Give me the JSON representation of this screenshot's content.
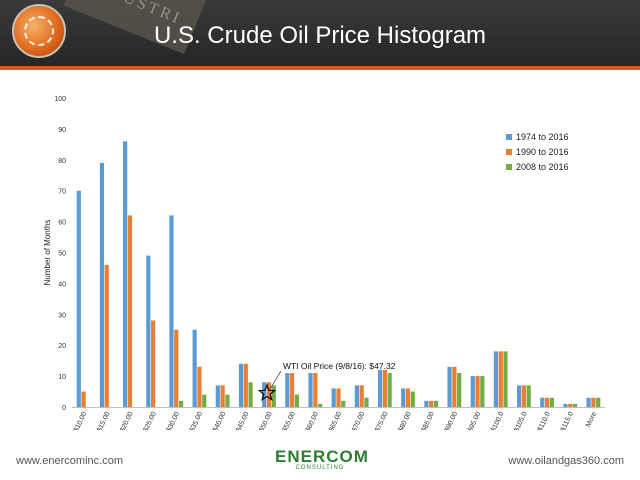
{
  "header": {
    "title": "U.S. Crude Oil Price Histogram",
    "watermark_text": "INDUSTRI"
  },
  "footer": {
    "left_url": "www.enercominc.com",
    "right_url": "www.oilandgas360.com",
    "brand": "ENERCOM",
    "brand_sub": "CONSULTING"
  },
  "colors": {
    "series_1": "#5b9bd5",
    "series_2": "#ed7d31",
    "series_3": "#70ad47",
    "header_accent": "#d9531e"
  },
  "chart_data": {
    "type": "bar",
    "title": "",
    "xlabel": "",
    "ylabel": "Number of Months",
    "ylim": [
      0,
      100
    ],
    "yticks": [
      0,
      10,
      20,
      30,
      40,
      50,
      60,
      70,
      80,
      90,
      100
    ],
    "grid": false,
    "legend_position": "right",
    "categories": [
      "$10.00",
      "$15.00",
      "$20.00",
      "$25.00",
      "$30.00",
      "$35.00",
      "$40.00",
      "$45.00",
      "$50.00",
      "$55.00",
      "$60.00",
      "$65.00",
      "$70.00",
      "$75.00",
      "$80.00",
      "$85.00",
      "$90.00",
      "$95.00",
      "$100.0",
      "$105.0",
      "$110.0",
      "$115.0",
      "More"
    ],
    "series": [
      {
        "name": "1974 to 2016",
        "values": [
          70,
          79,
          86,
          49,
          62,
          25,
          7,
          14,
          8,
          11,
          11,
          6,
          7,
          12,
          6,
          2,
          13,
          10,
          18,
          7,
          3,
          1,
          3
        ]
      },
      {
        "name": "1990 to 2016",
        "values": [
          5,
          46,
          62,
          28,
          25,
          13,
          7,
          14,
          8,
          11,
          11,
          6,
          7,
          12,
          6,
          2,
          13,
          10,
          18,
          7,
          3,
          1,
          3
        ]
      },
      {
        "name": "2008 to 2016",
        "values": [
          0,
          0,
          0,
          0,
          2,
          4,
          4,
          8,
          7,
          4,
          1,
          2,
          3,
          11,
          5,
          2,
          11,
          10,
          18,
          7,
          3,
          1,
          3
        ]
      }
    ],
    "annotation": {
      "text": "WTI Oil Price (9/8/16): $47.32",
      "category": "$50.00",
      "value": 4.5
    }
  }
}
